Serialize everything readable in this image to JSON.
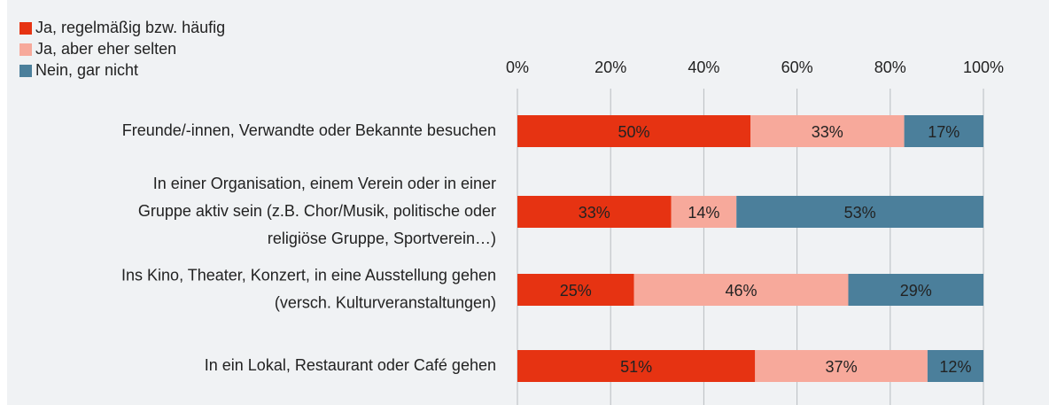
{
  "chart_data": {
    "type": "stacked-bar-horizontal",
    "categories": [
      [
        "Freunde/-innen, Verwandte oder Bekannte besuchen"
      ],
      [
        "In einer Organisation, einem Verein oder in einer",
        "Gruppe aktiv sein (z.B. Chor/Musik, politische oder",
        "religiöse Gruppe, Sportverein…)"
      ],
      [
        "Ins Kino, Theater, Konzert, in eine Ausstellung gehen",
        "(versch. Kulturveranstaltungen)"
      ],
      [
        "In ein Lokal, Restaurant oder Café gehen"
      ]
    ],
    "series": [
      {
        "name": "Ja, regelmäßig bzw. häufig",
        "color": "#e63312",
        "values": [
          50,
          33,
          25,
          51
        ],
        "value_labels": [
          "50%",
          "33%",
          "25%",
          "51%"
        ]
      },
      {
        "name": "Ja, aber eher selten",
        "color": "#f7a99b",
        "values": [
          33,
          14,
          46,
          37
        ],
        "value_labels": [
          "33%",
          "14%",
          "46%",
          "37%"
        ]
      },
      {
        "name": "Nein, gar nicht",
        "color": "#4b7f9b",
        "values": [
          17,
          53,
          29,
          12
        ],
        "value_labels": [
          "17%",
          "53%",
          "29%",
          "12%"
        ]
      }
    ],
    "xlim": [
      0,
      100
    ],
    "xticks": [
      {
        "value": 0,
        "label": "0%"
      },
      {
        "value": 20,
        "label": "20%"
      },
      {
        "value": 40,
        "label": "40%"
      },
      {
        "value": 60,
        "label": "60%"
      },
      {
        "value": 80,
        "label": "80%"
      },
      {
        "value": 100,
        "label": "100%"
      }
    ],
    "grid": true
  }
}
